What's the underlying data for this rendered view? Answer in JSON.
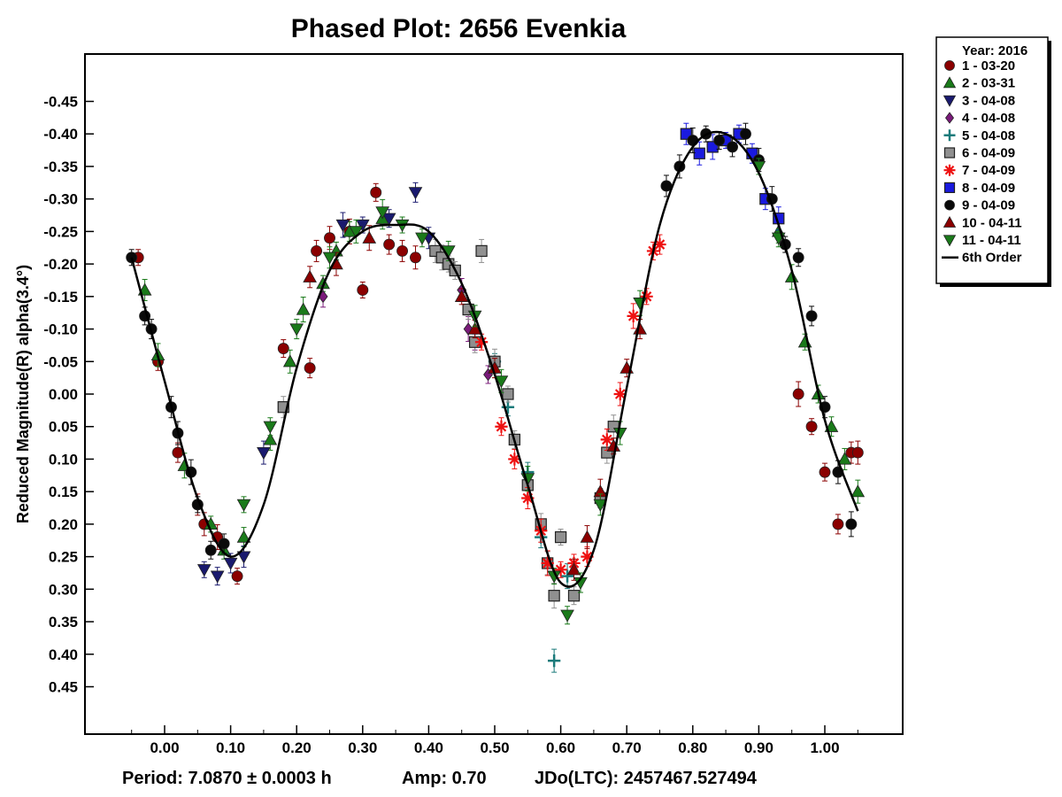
{
  "chart_data": {
    "type": "scatter",
    "title": "Phased Plot: 2656 Evenkia",
    "ylabel": "Reduced Magnitude(R) alpha(3.4°)",
    "xlabel": "",
    "xlim": [
      -0.12,
      1.12
    ],
    "ylim": [
      0.55,
      -0.55
    ],
    "y_reversed": true,
    "grid": false,
    "x_ticks": [
      0.0,
      0.1,
      0.2,
      0.3,
      0.4,
      0.5,
      0.6,
      0.7,
      0.8,
      0.9,
      1.0
    ],
    "x_tick_labels": [
      "0.00",
      "0.10",
      "0.20",
      "0.30",
      "0.40",
      "0.50",
      "0.60",
      "0.70",
      "0.80",
      "0.90",
      "1.00"
    ],
    "y_ticks": [
      -0.45,
      -0.4,
      -0.35,
      -0.3,
      -0.25,
      -0.2,
      -0.15,
      -0.1,
      -0.05,
      0.0,
      0.05,
      0.1,
      0.15,
      0.2,
      0.25,
      0.3,
      0.35,
      0.4,
      0.45
    ],
    "y_tick_labels": [
      "-0.45",
      "-0.40",
      "-0.35",
      "-0.30",
      "-0.25",
      "-0.20",
      "-0.15",
      "-0.10",
      "-0.05",
      "0.00",
      "0.05",
      "0.10",
      "0.15",
      "0.20",
      "0.25",
      "0.30",
      "0.35",
      "0.40",
      "0.45"
    ],
    "legend": {
      "placement": "right-top",
      "title": "Year: 2016",
      "fit_label": "6th Order"
    },
    "footer": {
      "period": "Period: 7.0870 ± 0.0003 h",
      "amp": "Amp: 0.70",
      "jdo": "JDo(LTC): 2457467.527494"
    },
    "fit_curve": {
      "name": "6th Order",
      "x": [
        -0.05,
        0.0,
        0.05,
        0.1,
        0.15,
        0.2,
        0.25,
        0.3,
        0.35,
        0.4,
        0.45,
        0.5,
        0.55,
        0.6,
        0.65,
        0.7,
        0.75,
        0.8,
        0.85,
        0.9,
        0.95,
        1.0,
        1.05
      ],
      "y": [
        -0.21,
        -0.02,
        0.16,
        0.25,
        0.17,
        -0.04,
        -0.19,
        -0.25,
        -0.26,
        -0.25,
        -0.17,
        -0.03,
        0.14,
        0.29,
        0.24,
        -0.01,
        -0.26,
        -0.38,
        -0.4,
        -0.34,
        -0.19,
        0.04,
        0.18
      ]
    },
    "series": [
      {
        "name": "1 - 03-20",
        "marker": "circle",
        "color": "#8b0000",
        "x": [
          -0.04,
          -0.01,
          0.02,
          0.05,
          0.06,
          0.08,
          0.11,
          0.18,
          0.22,
          0.23,
          0.25,
          0.28,
          0.3,
          0.32,
          0.34,
          0.36,
          0.38,
          0.96,
          0.98,
          1.0,
          1.02,
          1.04,
          1.05
        ],
        "y": [
          -0.21,
          -0.05,
          0.09,
          0.17,
          0.2,
          0.22,
          0.28,
          -0.07,
          -0.04,
          -0.22,
          -0.24,
          -0.25,
          -0.16,
          -0.31,
          -0.23,
          -0.22,
          -0.21,
          0.0,
          0.05,
          0.12,
          0.2,
          0.09,
          0.09
        ]
      },
      {
        "name": "2 - 03-31",
        "marker": "triangle-up",
        "color": "#1a7a1a",
        "x": [
          -0.03,
          -0.01,
          0.03,
          0.07,
          0.09,
          0.12,
          0.16,
          0.19,
          0.21,
          0.24,
          0.26,
          0.28,
          0.33,
          0.93,
          0.95,
          0.97,
          0.99,
          1.01,
          1.03,
          1.05
        ],
        "y": [
          -0.16,
          -0.06,
          0.11,
          0.2,
          0.24,
          0.22,
          0.07,
          -0.05,
          -0.13,
          -0.17,
          -0.22,
          -0.25,
          -0.27,
          -0.25,
          -0.18,
          -0.08,
          0.0,
          0.05,
          0.1,
          0.15
        ]
      },
      {
        "name": "3 - 04-08",
        "marker": "triangle-down",
        "color": "#1a1a6e",
        "x": [
          0.06,
          0.08,
          0.1,
          0.12,
          0.15,
          0.27,
          0.3,
          0.34,
          0.38,
          0.4
        ],
        "y": [
          0.27,
          0.28,
          0.26,
          0.25,
          0.09,
          -0.26,
          -0.26,
          -0.27,
          -0.31,
          -0.24
        ]
      },
      {
        "name": "4 - 04-08",
        "marker": "diamond",
        "color": "#7a1a7a",
        "x": [
          0.24,
          0.45,
          0.46,
          0.47,
          0.49
        ],
        "y": [
          -0.15,
          -0.16,
          -0.1,
          -0.08,
          -0.03
        ]
      },
      {
        "name": "5 - 04-08",
        "marker": "plus",
        "color": "#1a7a7a",
        "x": [
          0.5,
          0.52,
          0.55,
          0.57,
          0.59,
          0.61
        ],
        "y": [
          -0.05,
          0.02,
          0.12,
          0.22,
          0.41,
          0.28
        ]
      },
      {
        "name": "6 - 04-09",
        "marker": "square",
        "color": "#909090",
        "x": [
          0.18,
          0.41,
          0.42,
          0.43,
          0.44,
          0.46,
          0.47,
          0.48,
          0.5,
          0.52,
          0.53,
          0.55,
          0.57,
          0.58,
          0.59,
          0.6,
          0.62,
          0.66,
          0.67,
          0.68
        ],
        "y": [
          0.02,
          -0.22,
          -0.21,
          -0.2,
          -0.19,
          -0.13,
          -0.08,
          -0.22,
          -0.05,
          0.0,
          0.07,
          0.14,
          0.2,
          0.26,
          0.31,
          0.22,
          0.31,
          0.16,
          0.09,
          0.05
        ]
      },
      {
        "name": "7 - 04-09",
        "marker": "star",
        "color": "#ee1111",
        "x": [
          0.48,
          0.51,
          0.53,
          0.55,
          0.57,
          0.58,
          0.6,
          0.62,
          0.64,
          0.67,
          0.69,
          0.71,
          0.73,
          0.74,
          0.75
        ],
        "y": [
          -0.08,
          0.05,
          0.1,
          0.16,
          0.21,
          0.26,
          0.27,
          0.26,
          0.25,
          0.07,
          0.0,
          -0.12,
          -0.15,
          -0.22,
          -0.23
        ]
      },
      {
        "name": "8 - 04-09",
        "marker": "square",
        "color": "#1a1adf",
        "x": [
          0.79,
          0.81,
          0.83,
          0.85,
          0.87,
          0.89,
          0.91,
          0.93
        ],
        "y": [
          -0.4,
          -0.37,
          -0.38,
          -0.39,
          -0.4,
          -0.37,
          -0.3,
          -0.27
        ]
      },
      {
        "name": "9 - 04-09",
        "marker": "circle",
        "color": "#0a0a0a",
        "x": [
          -0.05,
          -0.03,
          -0.02,
          0.01,
          0.02,
          0.04,
          0.05,
          0.07,
          0.09,
          0.76,
          0.78,
          0.8,
          0.82,
          0.84,
          0.86,
          0.88,
          0.9,
          0.92,
          0.94,
          0.96,
          0.98,
          1.0,
          1.02,
          1.04
        ],
        "y": [
          -0.21,
          -0.12,
          -0.1,
          0.02,
          0.06,
          0.12,
          0.17,
          0.24,
          0.23,
          -0.32,
          -0.35,
          -0.39,
          -0.4,
          -0.39,
          -0.38,
          -0.4,
          -0.36,
          -0.3,
          -0.23,
          -0.21,
          -0.12,
          0.02,
          0.12,
          0.2
        ]
      },
      {
        "name": "10 - 04-11",
        "marker": "triangle-up",
        "color": "#8b0000",
        "x": [
          0.22,
          0.26,
          0.31,
          0.45,
          0.47,
          0.5,
          0.62,
          0.64,
          0.66,
          0.68,
          0.7,
          0.72
        ],
        "y": [
          -0.18,
          -0.2,
          -0.24,
          -0.15,
          -0.1,
          -0.04,
          0.27,
          0.22,
          0.15,
          0.08,
          -0.04,
          -0.1
        ]
      },
      {
        "name": "11 - 04-11",
        "marker": "triangle-down",
        "color": "#1a7a1a",
        "x": [
          0.12,
          0.16,
          0.2,
          0.25,
          0.29,
          0.33,
          0.36,
          0.39,
          0.43,
          0.47,
          0.51,
          0.55,
          0.59,
          0.61,
          0.63,
          0.66,
          0.69,
          0.72,
          0.9,
          0.93
        ],
        "y": [
          0.17,
          0.05,
          -0.1,
          -0.21,
          -0.25,
          -0.28,
          -0.26,
          -0.24,
          -0.22,
          -0.12,
          -0.02,
          0.13,
          0.28,
          0.34,
          0.29,
          0.17,
          0.06,
          -0.14,
          -0.35,
          -0.24
        ]
      }
    ]
  }
}
